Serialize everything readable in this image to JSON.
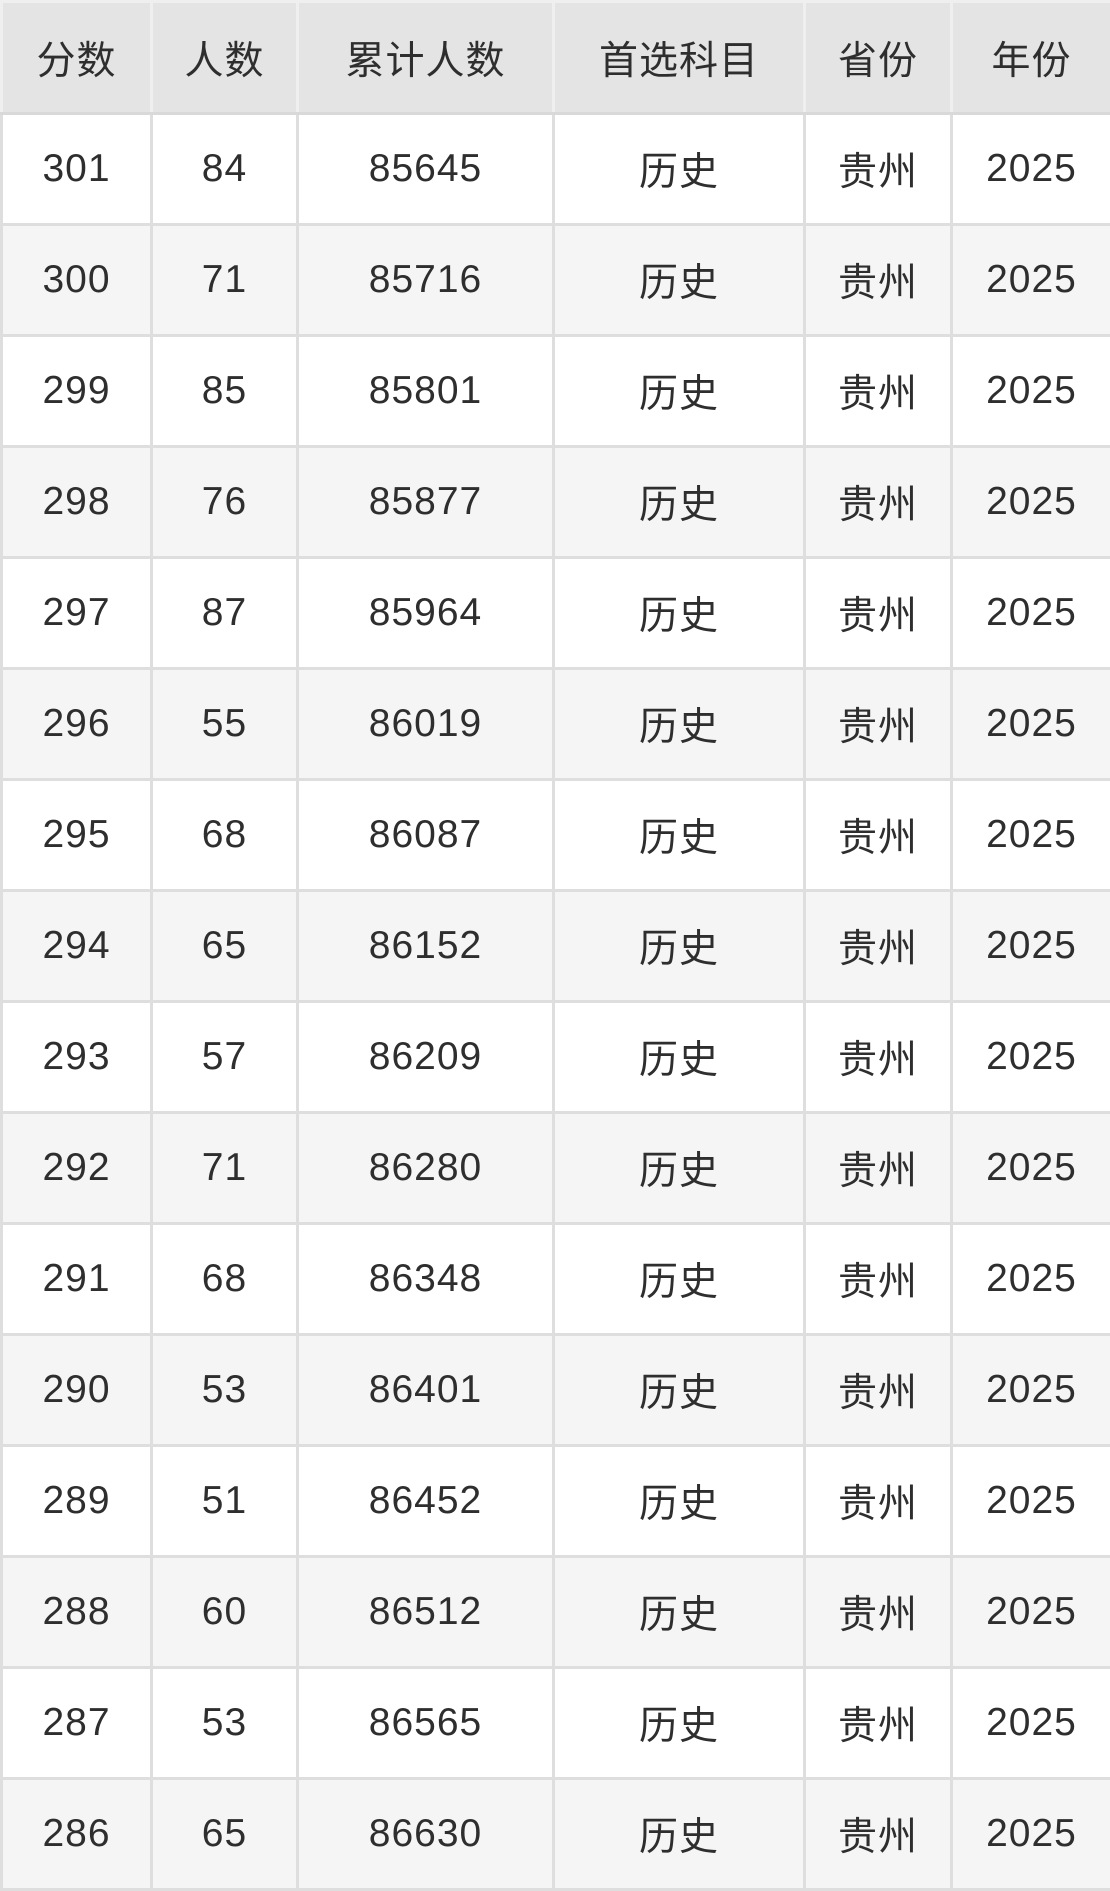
{
  "colors": {
    "header_bg": "#e4e4e4",
    "row_bg": "#ffffff",
    "row_alt_bg": "#f5f5f6",
    "grid": "#dedede",
    "grid_header": "#efefef",
    "grid_header_bottom": "#d9d9d9",
    "text": "#2e2e2e"
  },
  "chart_data": {
    "type": "table",
    "title": "",
    "columns": [
      {
        "key": "score",
        "label": "分数"
      },
      {
        "key": "count",
        "label": "人数"
      },
      {
        "key": "cumulative",
        "label": "累计人数"
      },
      {
        "key": "subject",
        "label": "首选科目"
      },
      {
        "key": "province",
        "label": "省份"
      },
      {
        "key": "year",
        "label": "年份"
      }
    ],
    "rows": [
      {
        "score": "301",
        "count": "84",
        "cumulative": "85645",
        "subject": "历史",
        "province": "贵州",
        "year": "2025"
      },
      {
        "score": "300",
        "count": "71",
        "cumulative": "85716",
        "subject": "历史",
        "province": "贵州",
        "year": "2025"
      },
      {
        "score": "299",
        "count": "85",
        "cumulative": "85801",
        "subject": "历史",
        "province": "贵州",
        "year": "2025"
      },
      {
        "score": "298",
        "count": "76",
        "cumulative": "85877",
        "subject": "历史",
        "province": "贵州",
        "year": "2025"
      },
      {
        "score": "297",
        "count": "87",
        "cumulative": "85964",
        "subject": "历史",
        "province": "贵州",
        "year": "2025"
      },
      {
        "score": "296",
        "count": "55",
        "cumulative": "86019",
        "subject": "历史",
        "province": "贵州",
        "year": "2025"
      },
      {
        "score": "295",
        "count": "68",
        "cumulative": "86087",
        "subject": "历史",
        "province": "贵州",
        "year": "2025"
      },
      {
        "score": "294",
        "count": "65",
        "cumulative": "86152",
        "subject": "历史",
        "province": "贵州",
        "year": "2025"
      },
      {
        "score": "293",
        "count": "57",
        "cumulative": "86209",
        "subject": "历史",
        "province": "贵州",
        "year": "2025"
      },
      {
        "score": "292",
        "count": "71",
        "cumulative": "86280",
        "subject": "历史",
        "province": "贵州",
        "year": "2025"
      },
      {
        "score": "291",
        "count": "68",
        "cumulative": "86348",
        "subject": "历史",
        "province": "贵州",
        "year": "2025"
      },
      {
        "score": "290",
        "count": "53",
        "cumulative": "86401",
        "subject": "历史",
        "province": "贵州",
        "year": "2025"
      },
      {
        "score": "289",
        "count": "51",
        "cumulative": "86452",
        "subject": "历史",
        "province": "贵州",
        "year": "2025"
      },
      {
        "score": "288",
        "count": "60",
        "cumulative": "86512",
        "subject": "历史",
        "province": "贵州",
        "year": "2025"
      },
      {
        "score": "287",
        "count": "53",
        "cumulative": "86565",
        "subject": "历史",
        "province": "贵州",
        "year": "2025"
      },
      {
        "score": "286",
        "count": "65",
        "cumulative": "86630",
        "subject": "历史",
        "province": "贵州",
        "year": "2025"
      }
    ]
  }
}
